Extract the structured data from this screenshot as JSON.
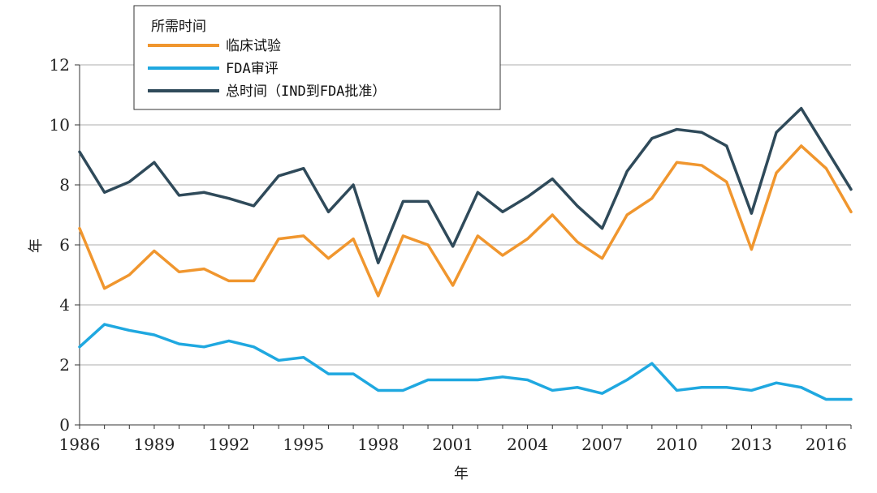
{
  "chart_data": {
    "type": "line",
    "xlabel": "年",
    "ylabel": "年",
    "xlim": [
      1986,
      2017
    ],
    "ylim": [
      0,
      12
    ],
    "xticks": [
      "1986",
      "1989",
      "1992",
      "1995",
      "1998",
      "2001",
      "2004",
      "2007",
      "2010",
      "2013",
      "2016"
    ],
    "yticks": [
      "0",
      "2",
      "4",
      "6",
      "8",
      "10",
      "12"
    ],
    "grid": "horizontal",
    "legend": {
      "title": "所需时间",
      "placement": "top-left"
    },
    "x": [
      1986,
      1987,
      1988,
      1989,
      1990,
      1991,
      1992,
      1993,
      1994,
      1995,
      1996,
      1997,
      1998,
      1999,
      2000,
      2001,
      2002,
      2003,
      2004,
      2005,
      2006,
      2007,
      2008,
      2009,
      2010,
      2011,
      2012,
      2013,
      2014,
      2015,
      2016,
      2017
    ],
    "series": [
      {
        "name": "临床试验",
        "color": "#f0962e",
        "values": [
          6.55,
          4.55,
          5.0,
          5.8,
          5.1,
          5.2,
          4.8,
          4.8,
          6.2,
          6.3,
          5.55,
          6.2,
          4.3,
          6.3,
          6.0,
          4.65,
          6.3,
          5.65,
          6.2,
          7.0,
          6.1,
          5.55,
          7.0,
          7.55,
          8.75,
          8.65,
          8.1,
          5.85,
          8.4,
          9.3,
          8.55,
          7.1
        ]
      },
      {
        "name": "FDA审评",
        "color": "#1fa8e0",
        "values": [
          2.6,
          3.35,
          3.15,
          3.0,
          2.7,
          2.6,
          2.8,
          2.6,
          2.15,
          2.25,
          1.7,
          1.7,
          1.15,
          1.15,
          1.5,
          1.5,
          1.5,
          1.6,
          1.5,
          1.15,
          1.25,
          1.05,
          1.5,
          2.05,
          1.15,
          1.25,
          1.25,
          1.15,
          1.4,
          1.25,
          0.85,
          0.85
        ]
      },
      {
        "name": "总时间（IND到FDA批准）",
        "color": "#2f4a5a",
        "values": [
          9.1,
          7.75,
          8.1,
          8.75,
          7.65,
          7.75,
          7.55,
          7.3,
          8.3,
          8.55,
          7.1,
          8.0,
          5.4,
          7.45,
          7.45,
          5.95,
          7.75,
          7.1,
          7.6,
          8.2,
          7.3,
          6.55,
          8.45,
          9.55,
          9.85,
          9.75,
          9.3,
          7.05,
          9.75,
          10.55,
          9.2,
          7.85
        ]
      }
    ]
  }
}
